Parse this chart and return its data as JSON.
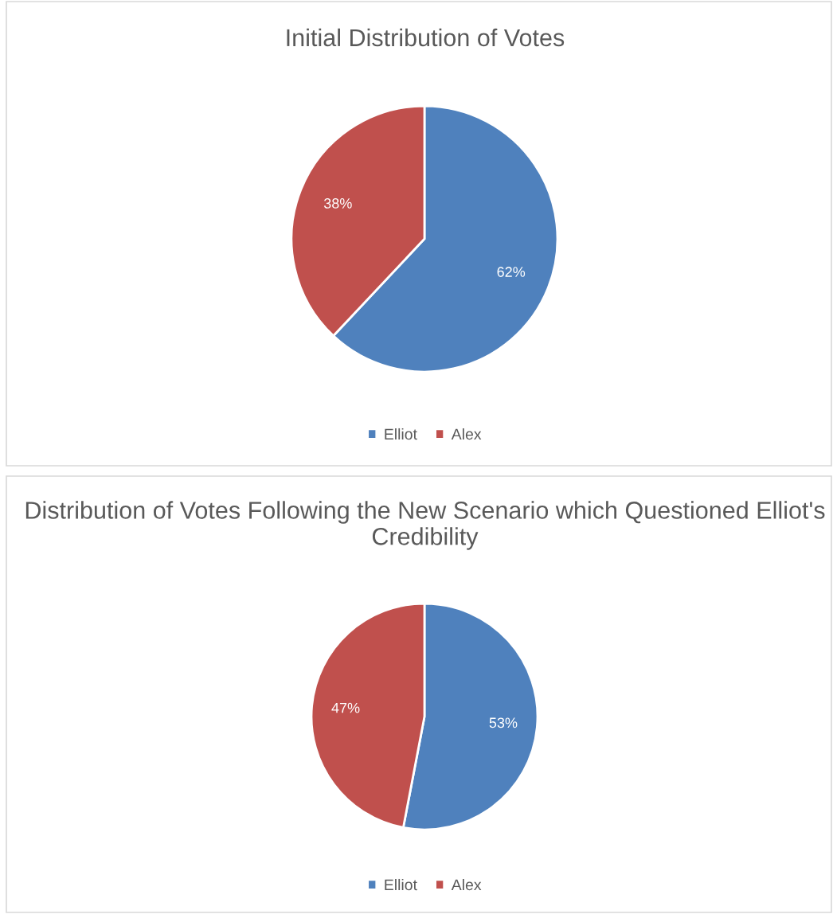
{
  "chart_data": [
    {
      "type": "pie",
      "title": "Initial Distribution of Votes",
      "categories": [
        "Elliot",
        "Alex"
      ],
      "values": [
        62,
        38
      ],
      "colors": [
        "#4f81bd",
        "#c0504d"
      ],
      "value_labels": [
        "62%",
        "38%"
      ],
      "legend": "bottom"
    },
    {
      "type": "pie",
      "title": "Distribution of Votes Following the New Scenario which Questioned Elliot's Credibility",
      "categories": [
        "Elliot",
        "Alex"
      ],
      "values": [
        53,
        47
      ],
      "colors": [
        "#4f81bd",
        "#c0504d"
      ],
      "value_labels": [
        "53%",
        "47%"
      ],
      "legend": "bottom"
    }
  ]
}
